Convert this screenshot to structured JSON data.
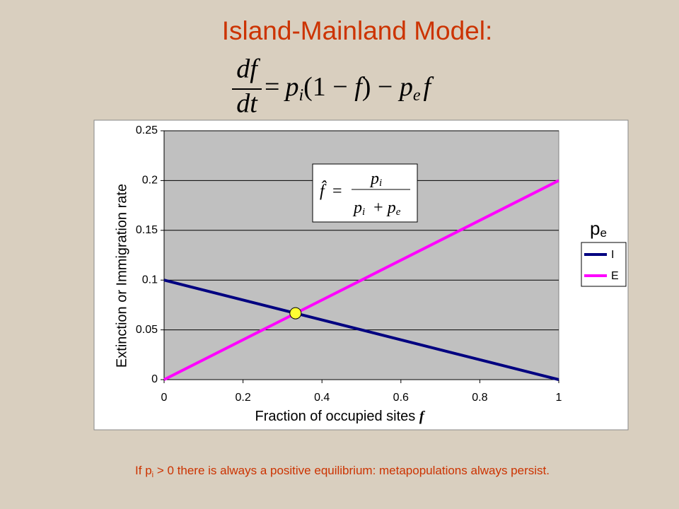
{
  "title": "Island-Mainland Model:",
  "equation": {
    "num": "df",
    "den": "dt",
    "eq": "=",
    "p1": "p",
    "s1": "i",
    "mid1": "(1 − ",
    "f1": "f",
    "mid2": ") − ",
    "p2": "p",
    "s2": "e",
    "f2": "f"
  },
  "note": {
    "pre": "If p",
    "sub": "i",
    "post": " > 0 there is always a positive equilibrium: metapopulations always persist."
  },
  "chart_data": {
    "type": "line",
    "ylabel": "Extinction or Immigration rate",
    "xlabel": "Fraction of occupied sites ",
    "xlabel_var": "f",
    "x": [
      0,
      1
    ],
    "series": [
      {
        "name": "I",
        "color": "#000080",
        "values": [
          0.1,
          0
        ]
      },
      {
        "name": "E",
        "color": "#ff00ff",
        "values": [
          0,
          0.2
        ]
      }
    ],
    "legend_title": "p",
    "legend_title_sub": "e",
    "equilibrium": {
      "x": 0.333,
      "y": 0.0667,
      "color": "#ffff33"
    },
    "inset": {
      "lhs": "f̂",
      "eq": "=",
      "num": "p",
      "num_sub": "i",
      "den1": "p",
      "den1_sub": "i",
      "plus": "  + ",
      "den2": "p",
      "den2_sub": "e"
    },
    "xlim": [
      0,
      1
    ],
    "ylim": [
      0,
      0.25
    ],
    "xticks": [
      0,
      0.2,
      0.4,
      0.6,
      0.8,
      1
    ],
    "yticks": [
      0,
      0.05,
      0.1,
      0.15,
      0.2,
      0.25
    ],
    "grid": true,
    "plot_color": "#c0c0c0"
  }
}
